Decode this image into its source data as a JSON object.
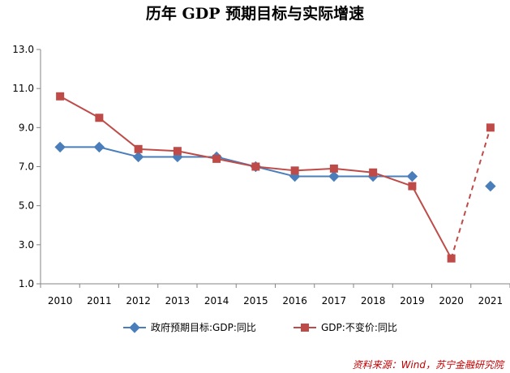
{
  "chart_data": {
    "type": "line",
    "title": "历年 GDP 预期目标与实际增速",
    "categories": [
      "2010",
      "2011",
      "2012",
      "2013",
      "2014",
      "2015",
      "2016",
      "2017",
      "2018",
      "2019",
      "2020",
      "2021"
    ],
    "ylim": [
      1.0,
      13.0
    ],
    "yticks": [
      "1.0",
      "3.0",
      "5.0",
      "7.0",
      "9.0",
      "11.0",
      "13.0"
    ],
    "series": [
      {
        "name": "政府预期目标:GDP:同比",
        "color": "#4a7ebb",
        "marker": "diamond",
        "values": [
          8.0,
          8.0,
          7.5,
          7.5,
          7.5,
          7.0,
          6.5,
          6.5,
          6.5,
          6.5,
          null,
          6.0
        ]
      },
      {
        "name": "GDP:不变价:同比",
        "color": "#be4b48",
        "marker": "square",
        "values": [
          10.6,
          9.5,
          7.9,
          7.8,
          7.4,
          7.0,
          6.8,
          6.9,
          6.7,
          6.0,
          2.3,
          9.0
        ],
        "dashed_from_index": 10
      }
    ],
    "grid": false,
    "legend": "bottom"
  },
  "source": "资料来源：Wind，苏宁金融研究院"
}
